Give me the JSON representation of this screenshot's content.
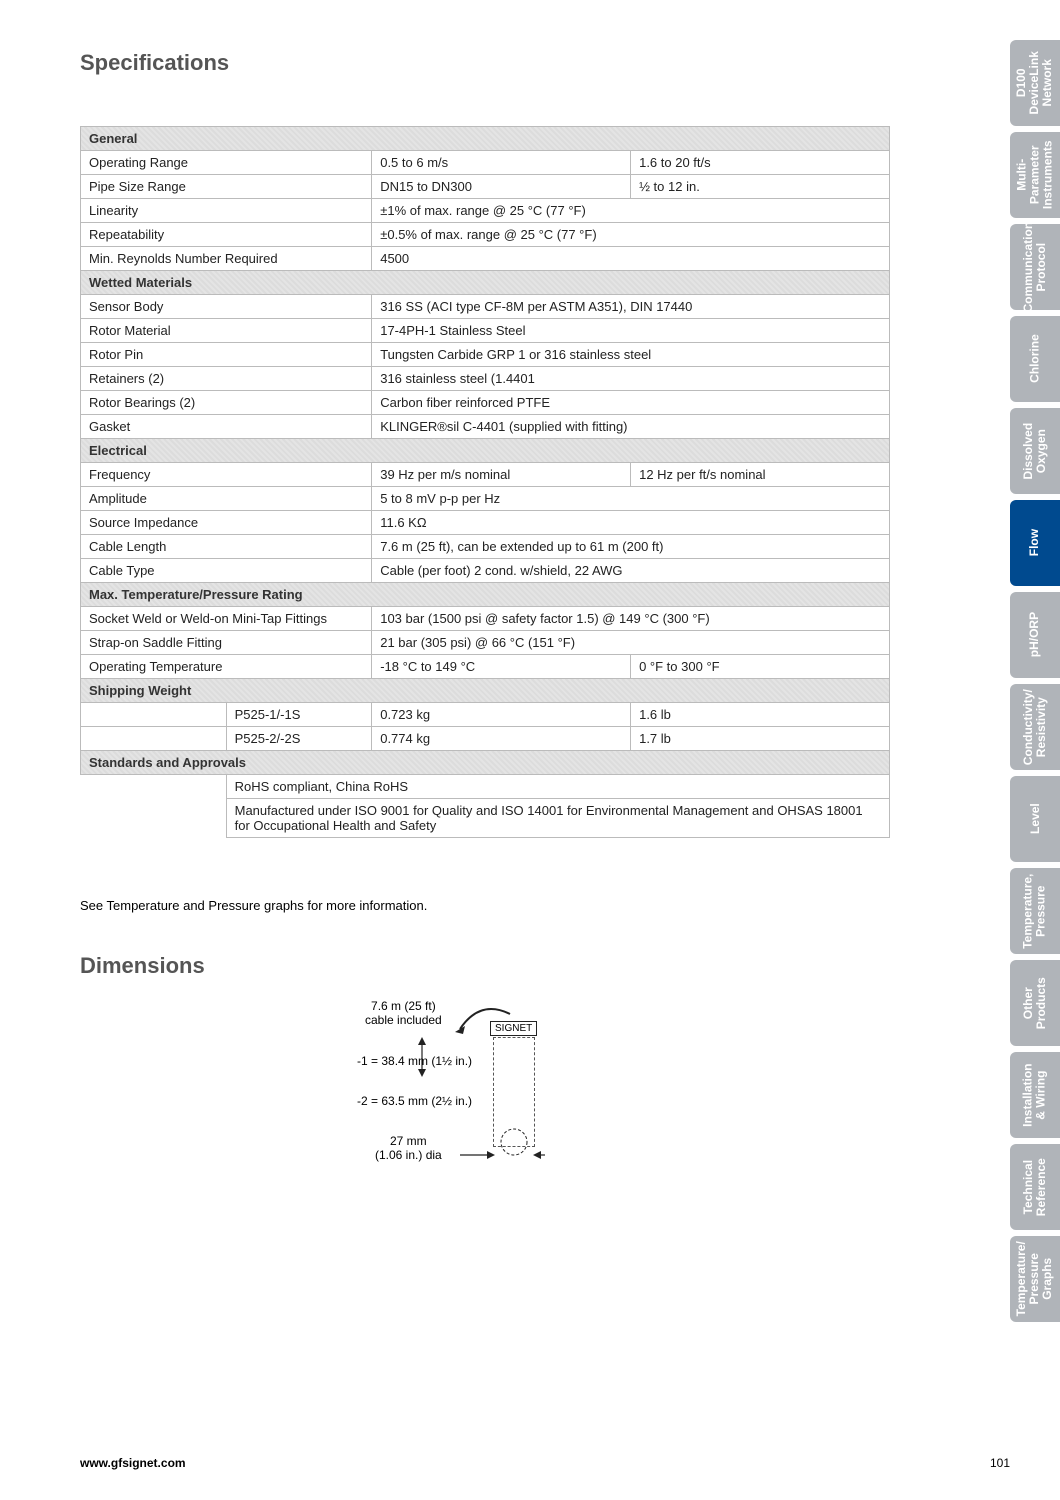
{
  "headings": {
    "specifications": "Specifications",
    "dimensions": "Dimensions"
  },
  "sections": {
    "general": "General",
    "wetted": "Wetted Materials",
    "electrical": "Electrical",
    "maxtp": "Max. Temperature/Pressure Rating",
    "shipping": "Shipping Weight",
    "standards": "Standards and Approvals"
  },
  "general": {
    "operating_range": {
      "label": "Operating Range",
      "v1": "0.5 to 6 m/s",
      "v2": "1.6 to 20 ft/s"
    },
    "pipe_size": {
      "label": "Pipe Size Range",
      "v1": "DN15 to DN300",
      "v2": "½ to 12 in."
    },
    "linearity": {
      "label": "Linearity",
      "v": "±1% of max. range @ 25 °C (77 °F)"
    },
    "repeatability": {
      "label": "Repeatability",
      "v": "±0.5% of max. range @ 25 °C (77 °F)"
    },
    "reynolds": {
      "label": "Min. Reynolds Number Required",
      "v": "4500"
    }
  },
  "wetted": {
    "sensor_body": {
      "label": "Sensor Body",
      "v": "316 SS (ACI type CF-8M per ASTM A351), DIN 17440"
    },
    "rotor_material": {
      "label": "Rotor Material",
      "v": "17-4PH-1 Stainless Steel"
    },
    "rotor_pin": {
      "label": "Rotor Pin",
      "v": "Tungsten Carbide GRP 1 or 316 stainless steel"
    },
    "retainers": {
      "label": "Retainers (2)",
      "v": "316 stainless steel (1.4401"
    },
    "bearings": {
      "label": "Rotor Bearings (2)",
      "v": "Carbon fiber reinforced PTFE"
    },
    "gasket": {
      "label": "Gasket",
      "v": "KLINGER®sil C-4401 (supplied with fitting)"
    }
  },
  "electrical": {
    "frequency": {
      "label": "Frequency",
      "v1": "39 Hz per m/s nominal",
      "v2": "12 Hz per ft/s nominal"
    },
    "amplitude": {
      "label": "Amplitude",
      "v": "5 to 8 mV p-p per Hz"
    },
    "impedance": {
      "label": "Source Impedance",
      "v": "11.6 KΩ"
    },
    "cable_length": {
      "label": "Cable Length",
      "v": "7.6 m (25 ft), can be extended up to 61 m (200 ft)"
    },
    "cable_type": {
      "label": "Cable Type",
      "v": "Cable (per foot) 2 cond. w/shield, 22 AWG"
    }
  },
  "maxtp": {
    "socket": {
      "label": "Socket Weld or Weld-on Mini-Tap Fittings",
      "v": "103 bar (1500 psi @ safety factor 1.5) @ 149 °C (300 °F)"
    },
    "strap": {
      "label": "Strap-on Saddle Fitting",
      "v": "21 bar (305 psi) @ 66 °C (151 °F)"
    },
    "optemp": {
      "label": "Operating Temperature",
      "v1": "-18 °C to 149 °C",
      "v2": "0 °F to 300 °F"
    }
  },
  "shipping": {
    "r1": {
      "model": "P525-1/-1S",
      "kg": "0.723 kg",
      "lb": "1.6 lb"
    },
    "r2": {
      "model": "P525-2/-2S",
      "kg": "0.774 kg",
      "lb": "1.7 lb"
    }
  },
  "standards": {
    "r1": "RoHS compliant, China RoHS",
    "r2": "Manufactured under ISO 9001 for Quality and ISO 14001 for Environmental Management and OHSAS 18001 for Occupational Health and Safety"
  },
  "note": "See Temperature and Pressure graphs for more information.",
  "diagram": {
    "cable": "7.6 m (25 ft)\ncable included",
    "signet": "SIGNET",
    "d1": "-1 = 38.4 mm (1½ in.)",
    "d2": "-2 = 63.5 mm (2½ in.)",
    "dia": "27 mm\n(1.06 in.) dia"
  },
  "footer": {
    "url": "www.gfsignet.com",
    "page": "101"
  },
  "tabs": [
    {
      "label": "D100\nDeviceLink\nNetwork",
      "active": false
    },
    {
      "label": "Multi-\nParameter\nInstruments",
      "active": false
    },
    {
      "label": "Communication\nProtocol",
      "active": false
    },
    {
      "label": "Chlorine",
      "active": false
    },
    {
      "label": "Dissolved\nOxygen",
      "active": false
    },
    {
      "label": "Flow",
      "active": true
    },
    {
      "label": "pH/ORP",
      "active": false
    },
    {
      "label": "Conductivity/\nResistivity",
      "active": false
    },
    {
      "label": "Level",
      "active": false
    },
    {
      "label": "Temperature,\nPressure",
      "active": false
    },
    {
      "label": "Other\nProducts",
      "active": false
    },
    {
      "label": "Installation\n& Wiring",
      "active": false
    },
    {
      "label": "Technical\nReference",
      "active": false
    },
    {
      "label": "Temperature/\nPressure\nGraphs",
      "active": false
    }
  ],
  "tab_colors": {
    "active": "#004a8f",
    "inactive": "#b0b4b9",
    "text": "#ffffff"
  }
}
